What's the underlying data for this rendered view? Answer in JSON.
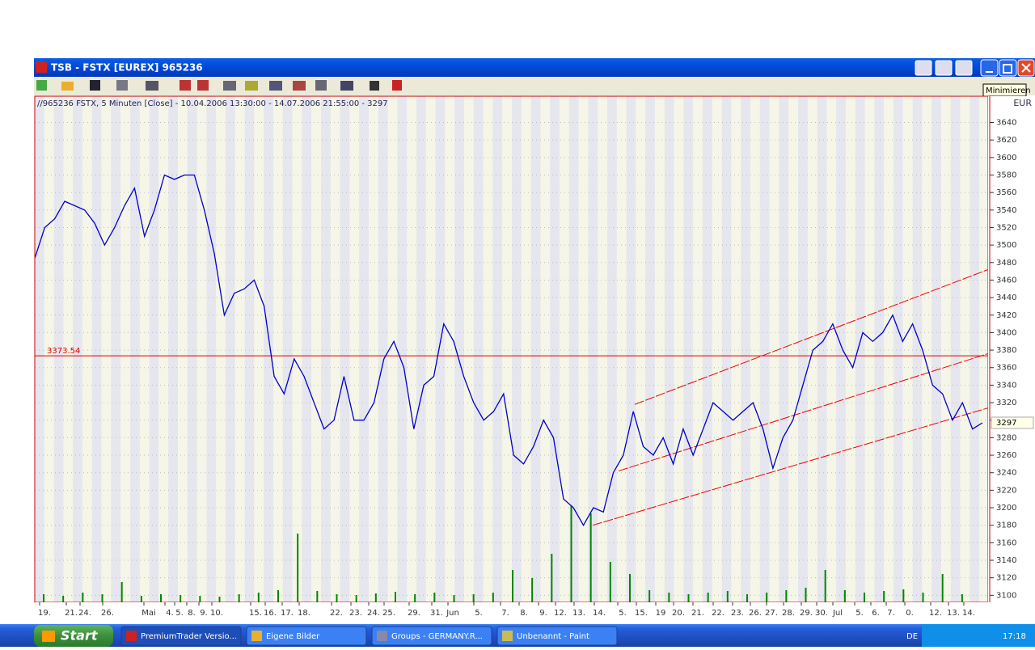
{
  "window": {
    "title": "TSB - FSTX [EUREX] 965236",
    "tooltip": "Minimieren"
  },
  "chart_data": {
    "type": "line",
    "info": "//965236 FSTX, 5 Minuten [Close] - 10.04.2006 13:30:00 - 14.07.2006 21:55:00 - 3297",
    "currency": "EUR",
    "x_labels": [
      "19.",
      "21.",
      "24.",
      "26.",
      "Mai",
      "4.",
      "5.",
      "8.",
      "9.",
      "10.",
      "15.",
      "16.",
      "17.",
      "18.",
      "22.",
      "23.",
      "24.",
      "25.",
      "29.",
      "31.",
      "Jun",
      "5.",
      "7.",
      "8.",
      "9.",
      "12.",
      "13.",
      "14.",
      "5.",
      "15.",
      "19",
      "20.",
      "21.",
      "22.",
      "23.",
      "26.",
      "27.",
      "28.",
      "29.",
      "30.",
      "Jul",
      "5.",
      "6.",
      "7.",
      "0.",
      "12.",
      "13.",
      "14."
    ],
    "series": [
      {
        "color": "#0000cc",
        "values": [
          3485,
          3520,
          3530,
          3550,
          3545,
          3540,
          3525,
          3500,
          3520,
          3545,
          3565,
          3510,
          3540,
          3580,
          3575,
          3580,
          3580,
          3540,
          3490,
          3420,
          3445,
          3450,
          3460,
          3430,
          3350,
          3330,
          3370,
          3350,
          3320,
          3290,
          3300,
          3350,
          3300,
          3300,
          3320,
          3370,
          3390,
          3360,
          3290,
          3340,
          3350,
          3410,
          3390,
          3350,
          3320,
          3300,
          3310,
          3330,
          3260,
          3250,
          3270,
          3300,
          3280,
          3210,
          3200,
          3180,
          3200,
          3195,
          3240,
          3260,
          3310,
          3270,
          3260,
          3280,
          3250,
          3290,
          3260,
          3290,
          3320,
          3310,
          3300,
          3310,
          3320,
          3290,
          3245,
          3280,
          3300,
          3340,
          3380,
          3390,
          3410,
          3380,
          3360,
          3400,
          3390,
          3400,
          3420,
          3390,
          3410,
          3380,
          3340,
          3330,
          3300,
          3320,
          3290,
          3297
        ]
      }
    ],
    "ylim": [
      3092,
      3670
    ],
    "yticks": [
      3100,
      3120,
      3140,
      3160,
      3180,
      3200,
      3220,
      3240,
      3260,
      3280,
      3300,
      3320,
      3340,
      3360,
      3380,
      3400,
      3420,
      3440,
      3460,
      3480,
      3500,
      3520,
      3540,
      3560,
      3580,
      3600,
      3620,
      3640
    ],
    "grid": true,
    "last": 3297,
    "level": {
      "value": 3373.54,
      "color": "#dd0000"
    },
    "channel": {
      "color": "#ee0000",
      "lines": [
        [
          3318,
          3472
        ],
        [
          3242,
          3376
        ],
        [
          3180,
          3314
        ]
      ]
    },
    "volume": {
      "color": "#008800",
      "values": [
        10,
        8,
        12,
        10,
        25,
        8,
        10,
        9,
        8,
        7,
        10,
        12,
        15,
        85,
        14,
        10,
        9,
        11,
        13,
        10,
        12,
        9,
        10,
        12,
        40,
        30,
        60,
        120,
        110,
        50,
        35,
        15,
        12,
        10,
        12,
        14,
        10,
        12,
        15,
        18,
        40,
        15,
        12,
        14,
        16,
        12,
        35,
        10
      ]
    }
  },
  "taskbar": {
    "start": "Start",
    "tasks": [
      "PremiumTrader Versio...",
      "Eigene Bilder",
      "Groups - GERMANY.R...",
      "Unbenannt - Paint"
    ],
    "language": "DE",
    "clock": "17:18"
  }
}
